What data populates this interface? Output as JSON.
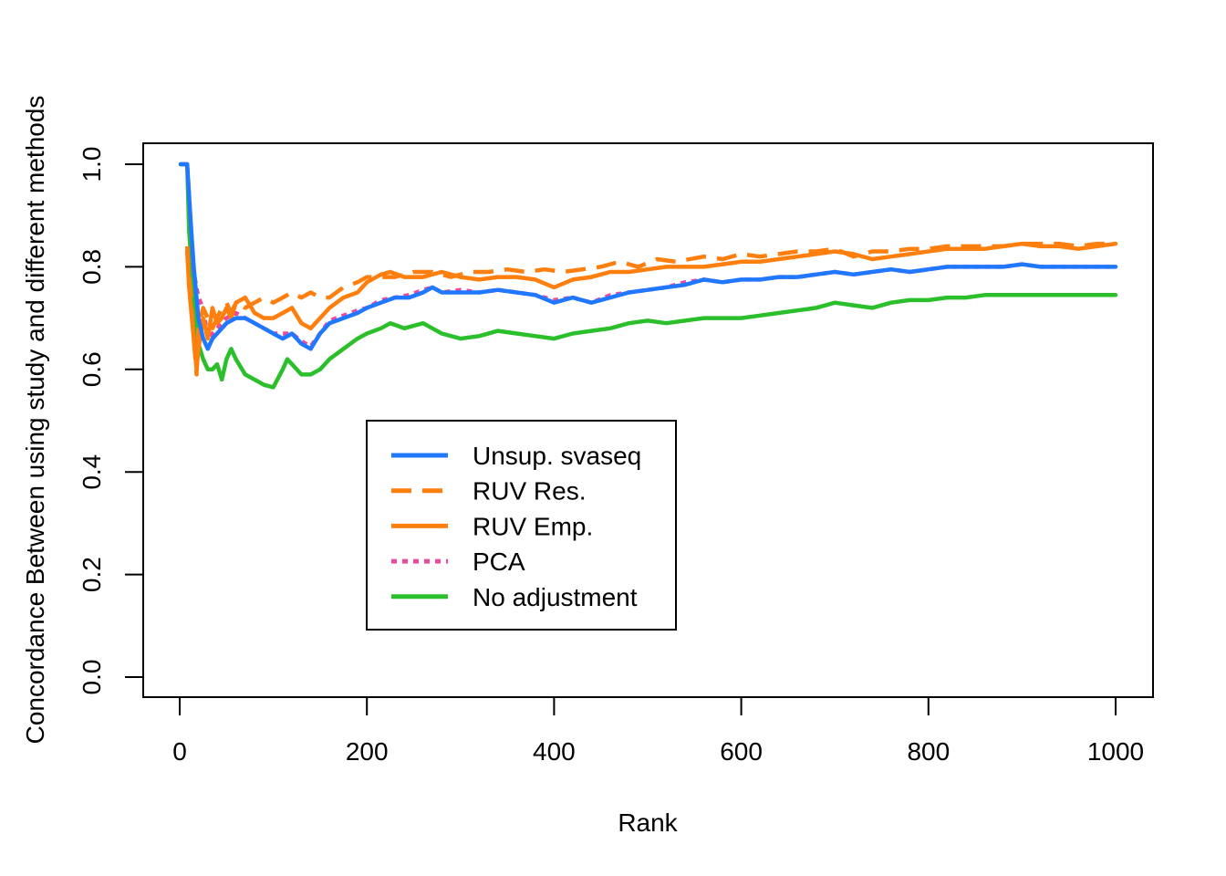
{
  "chart_data": {
    "type": "line",
    "title": "",
    "xlabel": "Rank",
    "ylabel": "Concordance Between using study and different methods",
    "xlim": [
      0,
      1000
    ],
    "ylim": [
      0,
      1.0
    ],
    "x_ticks": [
      0,
      200,
      400,
      600,
      800,
      1000
    ],
    "x_tick_labels": [
      "0",
      "200",
      "400",
      "600",
      "800",
      "1000"
    ],
    "y_ticks": [
      0.0,
      0.2,
      0.4,
      0.6,
      0.8,
      1.0
    ],
    "y_tick_labels": [
      "0.0",
      "0.2",
      "0.4",
      "0.6",
      "0.8",
      "1.0"
    ],
    "grid": false,
    "legend_position": "center-left",
    "series": [
      {
        "name": "Unsup. svaseq",
        "color": "#1f78ff",
        "dash": "solid",
        "x": [
          1,
          8,
          12,
          15,
          20,
          25,
          30,
          35,
          40,
          45,
          50,
          60,
          70,
          80,
          90,
          100,
          110,
          120,
          130,
          140,
          150,
          160,
          175,
          190,
          200,
          215,
          230,
          245,
          260,
          270,
          280,
          300,
          320,
          340,
          360,
          380,
          400,
          420,
          440,
          460,
          480,
          500,
          520,
          540,
          560,
          580,
          600,
          620,
          640,
          660,
          680,
          700,
          720,
          740,
          760,
          780,
          800,
          820,
          840,
          860,
          880,
          900,
          920,
          940,
          960,
          980,
          1000
        ],
        "y": [
          1.0,
          1.0,
          0.88,
          0.8,
          0.7,
          0.66,
          0.64,
          0.66,
          0.67,
          0.68,
          0.69,
          0.7,
          0.7,
          0.69,
          0.68,
          0.67,
          0.66,
          0.67,
          0.65,
          0.64,
          0.67,
          0.69,
          0.7,
          0.71,
          0.72,
          0.73,
          0.74,
          0.74,
          0.75,
          0.76,
          0.75,
          0.75,
          0.75,
          0.755,
          0.75,
          0.745,
          0.73,
          0.74,
          0.73,
          0.74,
          0.75,
          0.755,
          0.76,
          0.765,
          0.775,
          0.77,
          0.775,
          0.775,
          0.78,
          0.78,
          0.785,
          0.79,
          0.785,
          0.79,
          0.795,
          0.79,
          0.795,
          0.8,
          0.8,
          0.8,
          0.8,
          0.805,
          0.8,
          0.8,
          0.8,
          0.8,
          0.8
        ]
      },
      {
        "name": "RUV Res.",
        "color": "#ff7f0e",
        "dash": "dashed",
        "x": [
          8,
          10,
          12,
          15,
          18,
          20,
          25,
          30,
          35,
          40,
          45,
          50,
          55,
          60,
          70,
          80,
          90,
          100,
          110,
          120,
          130,
          140,
          150,
          160,
          175,
          190,
          200,
          215,
          230,
          250,
          270,
          290,
          310,
          330,
          350,
          370,
          390,
          410,
          430,
          450,
          470,
          490,
          510,
          530,
          560,
          580,
          600,
          620,
          640,
          660,
          680,
          700,
          720,
          740,
          760,
          780,
          800,
          820,
          840,
          860,
          880,
          900,
          920,
          940,
          960,
          980,
          1000
        ],
        "y": [
          0.84,
          0.78,
          0.74,
          0.66,
          0.59,
          0.68,
          0.72,
          0.7,
          0.68,
          0.7,
          0.72,
          0.73,
          0.71,
          0.73,
          0.72,
          0.73,
          0.74,
          0.73,
          0.74,
          0.75,
          0.74,
          0.75,
          0.74,
          0.74,
          0.76,
          0.77,
          0.78,
          0.78,
          0.78,
          0.79,
          0.79,
          0.78,
          0.79,
          0.79,
          0.795,
          0.79,
          0.795,
          0.79,
          0.795,
          0.8,
          0.81,
          0.8,
          0.815,
          0.81,
          0.82,
          0.815,
          0.825,
          0.82,
          0.825,
          0.83,
          0.83,
          0.835,
          0.82,
          0.83,
          0.83,
          0.835,
          0.835,
          0.84,
          0.84,
          0.84,
          0.84,
          0.845,
          0.845,
          0.845,
          0.84,
          0.845,
          0.845
        ]
      },
      {
        "name": "RUV Emp.",
        "color": "#ff7f0e",
        "dash": "solid",
        "x": [
          8,
          10,
          12,
          15,
          18,
          20,
          25,
          30,
          35,
          40,
          45,
          50,
          55,
          60,
          70,
          80,
          90,
          100,
          110,
          120,
          130,
          140,
          150,
          160,
          175,
          190,
          200,
          215,
          225,
          240,
          260,
          280,
          300,
          320,
          340,
          360,
          380,
          400,
          420,
          440,
          460,
          480,
          500,
          520,
          540,
          560,
          580,
          600,
          620,
          640,
          660,
          680,
          700,
          720,
          740,
          760,
          780,
          800,
          820,
          840,
          860,
          880,
          900,
          920,
          940,
          960,
          980,
          1000
        ],
        "y": [
          0.83,
          0.76,
          0.72,
          0.66,
          0.6,
          0.64,
          0.7,
          0.66,
          0.72,
          0.69,
          0.7,
          0.72,
          0.7,
          0.73,
          0.74,
          0.71,
          0.7,
          0.7,
          0.71,
          0.72,
          0.69,
          0.68,
          0.7,
          0.72,
          0.74,
          0.75,
          0.77,
          0.785,
          0.79,
          0.78,
          0.78,
          0.79,
          0.78,
          0.775,
          0.78,
          0.78,
          0.775,
          0.76,
          0.775,
          0.78,
          0.79,
          0.79,
          0.795,
          0.8,
          0.8,
          0.8,
          0.805,
          0.81,
          0.81,
          0.815,
          0.82,
          0.825,
          0.83,
          0.825,
          0.815,
          0.82,
          0.825,
          0.83,
          0.835,
          0.835,
          0.835,
          0.84,
          0.845,
          0.84,
          0.84,
          0.835,
          0.84,
          0.845
        ]
      },
      {
        "name": "PCA",
        "color": "#f0489c",
        "dash": "dotted",
        "x": [
          1,
          8,
          12,
          15,
          20,
          25,
          30,
          35,
          40,
          45,
          50,
          60,
          70,
          80,
          90,
          100,
          110,
          120,
          130,
          140,
          150,
          160,
          175,
          190,
          200,
          215,
          230,
          245,
          260,
          270,
          280,
          300,
          320,
          340,
          360,
          380,
          400,
          420,
          440,
          460,
          480,
          500,
          520,
          540,
          560,
          580,
          600,
          620,
          640,
          660,
          680,
          700,
          720,
          740,
          760,
          780,
          800,
          820,
          840,
          860,
          880,
          900,
          920,
          940,
          960,
          980,
          1000
        ],
        "y": [
          1.0,
          1.0,
          0.88,
          0.79,
          0.74,
          0.72,
          0.66,
          0.67,
          0.68,
          0.69,
          0.7,
          0.71,
          0.7,
          0.69,
          0.68,
          0.67,
          0.67,
          0.67,
          0.655,
          0.645,
          0.67,
          0.695,
          0.705,
          0.715,
          0.72,
          0.735,
          0.74,
          0.745,
          0.755,
          0.76,
          0.75,
          0.755,
          0.75,
          0.755,
          0.75,
          0.745,
          0.735,
          0.74,
          0.73,
          0.745,
          0.75,
          0.755,
          0.76,
          0.77,
          0.775,
          0.77,
          0.775,
          0.775,
          0.78,
          0.78,
          0.785,
          0.79,
          0.785,
          0.79,
          0.795,
          0.79,
          0.795,
          0.8,
          0.8,
          0.8,
          0.8,
          0.805,
          0.8,
          0.8,
          0.8,
          0.8,
          0.8
        ]
      },
      {
        "name": "No adjustment",
        "color": "#2bc02b",
        "dash": "solid",
        "x": [
          1,
          8,
          10,
          12,
          15,
          18,
          20,
          25,
          30,
          35,
          40,
          45,
          50,
          55,
          60,
          70,
          80,
          90,
          100,
          110,
          115,
          120,
          130,
          140,
          150,
          160,
          175,
          190,
          200,
          215,
          225,
          240,
          260,
          270,
          280,
          300,
          320,
          340,
          360,
          380,
          400,
          420,
          440,
          460,
          480,
          500,
          520,
          540,
          560,
          580,
          600,
          620,
          640,
          660,
          680,
          700,
          720,
          740,
          760,
          780,
          800,
          820,
          840,
          860,
          880,
          900,
          920,
          940,
          960,
          980,
          1000
        ],
        "y": [
          1.0,
          1.0,
          0.87,
          0.82,
          0.74,
          0.68,
          0.65,
          0.62,
          0.6,
          0.6,
          0.61,
          0.58,
          0.62,
          0.64,
          0.62,
          0.59,
          0.58,
          0.57,
          0.565,
          0.6,
          0.62,
          0.61,
          0.59,
          0.59,
          0.6,
          0.62,
          0.64,
          0.66,
          0.67,
          0.68,
          0.69,
          0.68,
          0.69,
          0.68,
          0.67,
          0.66,
          0.665,
          0.675,
          0.67,
          0.665,
          0.66,
          0.67,
          0.675,
          0.68,
          0.69,
          0.695,
          0.69,
          0.695,
          0.7,
          0.7,
          0.7,
          0.705,
          0.71,
          0.715,
          0.72,
          0.73,
          0.725,
          0.72,
          0.73,
          0.735,
          0.735,
          0.74,
          0.74,
          0.745,
          0.745,
          0.745,
          0.745,
          0.745,
          0.745,
          0.745,
          0.745
        ]
      }
    ]
  }
}
